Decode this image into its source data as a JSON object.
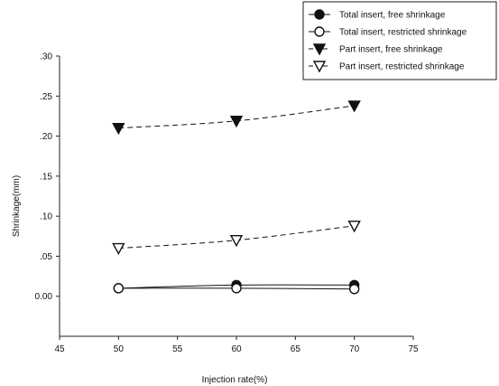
{
  "chart_data": {
    "type": "line",
    "title": "",
    "xlabel": "Injection rate(%)",
    "ylabel": "Shrinkage(mm)",
    "xlim": [
      45,
      75
    ],
    "ylim": [
      -0.05,
      0.3
    ],
    "x_ticks": [
      45,
      50,
      55,
      60,
      65,
      70,
      75
    ],
    "x_tick_labels": [
      "45",
      "50",
      "55",
      "60",
      "65",
      "70",
      "75"
    ],
    "y_ticks": [
      0.0,
      0.05,
      0.1,
      0.15,
      0.2,
      0.25,
      0.3
    ],
    "y_tick_labels": [
      "0.00",
      ".05",
      ".10",
      ".15",
      ".20",
      ".25",
      ".30"
    ],
    "grid": false,
    "legend_position": "top-right",
    "x": [
      50,
      60,
      70
    ],
    "series": [
      {
        "name": "Total insert, free shrinkage",
        "values": [
          0.01,
          0.014,
          0.014
        ],
        "marker": "filled-circle",
        "line": "solid",
        "color": "#111111"
      },
      {
        "name": "Total insert, restricted shrinkage",
        "values": [
          0.01,
          0.01,
          0.009
        ],
        "marker": "open-circle",
        "line": "solid",
        "color": "#111111"
      },
      {
        "name": "Part insert, free shrinkage",
        "values": [
          0.21,
          0.219,
          0.238
        ],
        "marker": "filled-triangle-down",
        "line": "dashed",
        "color": "#111111"
      },
      {
        "name": "Part insert, restricted shrinkage",
        "values": [
          0.06,
          0.07,
          0.088
        ],
        "marker": "open-triangle-down",
        "line": "dashed",
        "color": "#111111"
      }
    ]
  }
}
